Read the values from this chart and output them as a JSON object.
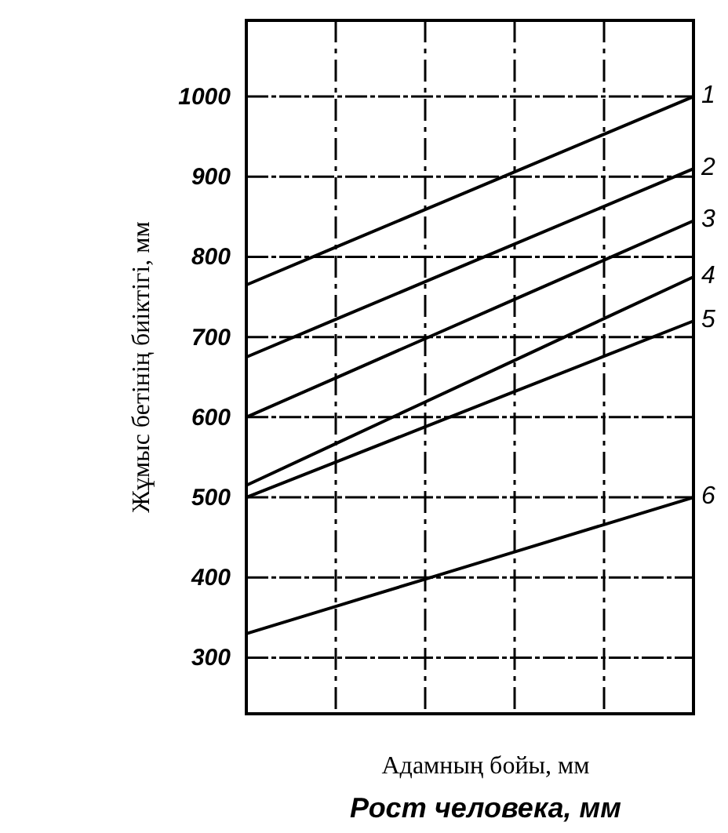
{
  "chart_data": {
    "type": "line",
    "ylabel": "Жұмыс бетінің биіктігі, мм",
    "xlabel": "Адамның бойы, мм",
    "annotations": [
      "Рост человека, мм"
    ],
    "categories": [
      null,
      null,
      null,
      null,
      null,
      null
    ],
    "series": [
      {
        "name": "1",
        "color": "#000000",
        "values": [
          765,
          812,
          859,
          906,
          953,
          1000
        ]
      },
      {
        "name": "2",
        "color": "#000000",
        "values": [
          675,
          722,
          769,
          816,
          863,
          910
        ]
      },
      {
        "name": "3",
        "color": "#000000",
        "values": [
          600,
          649,
          698,
          747,
          796,
          845
        ]
      },
      {
        "name": "4",
        "color": "#000000",
        "values": [
          515,
          567,
          619,
          671,
          723,
          775
        ]
      },
      {
        "name": "5",
        "color": "#000000",
        "values": [
          500,
          544,
          588,
          632,
          676,
          720
        ]
      },
      {
        "name": "6",
        "color": "#000000",
        "values": [
          330,
          364,
          398,
          432,
          466,
          500
        ]
      }
    ],
    "ylim": [
      230,
      1095
    ],
    "yticks": [
      300,
      400,
      500,
      600,
      700,
      {
        "value": 800,
        "label": "800"
      },
      900,
      1000
    ],
    "grid": true,
    "tick_labels": "y",
    "marker": "none",
    "line_style": "solid"
  }
}
